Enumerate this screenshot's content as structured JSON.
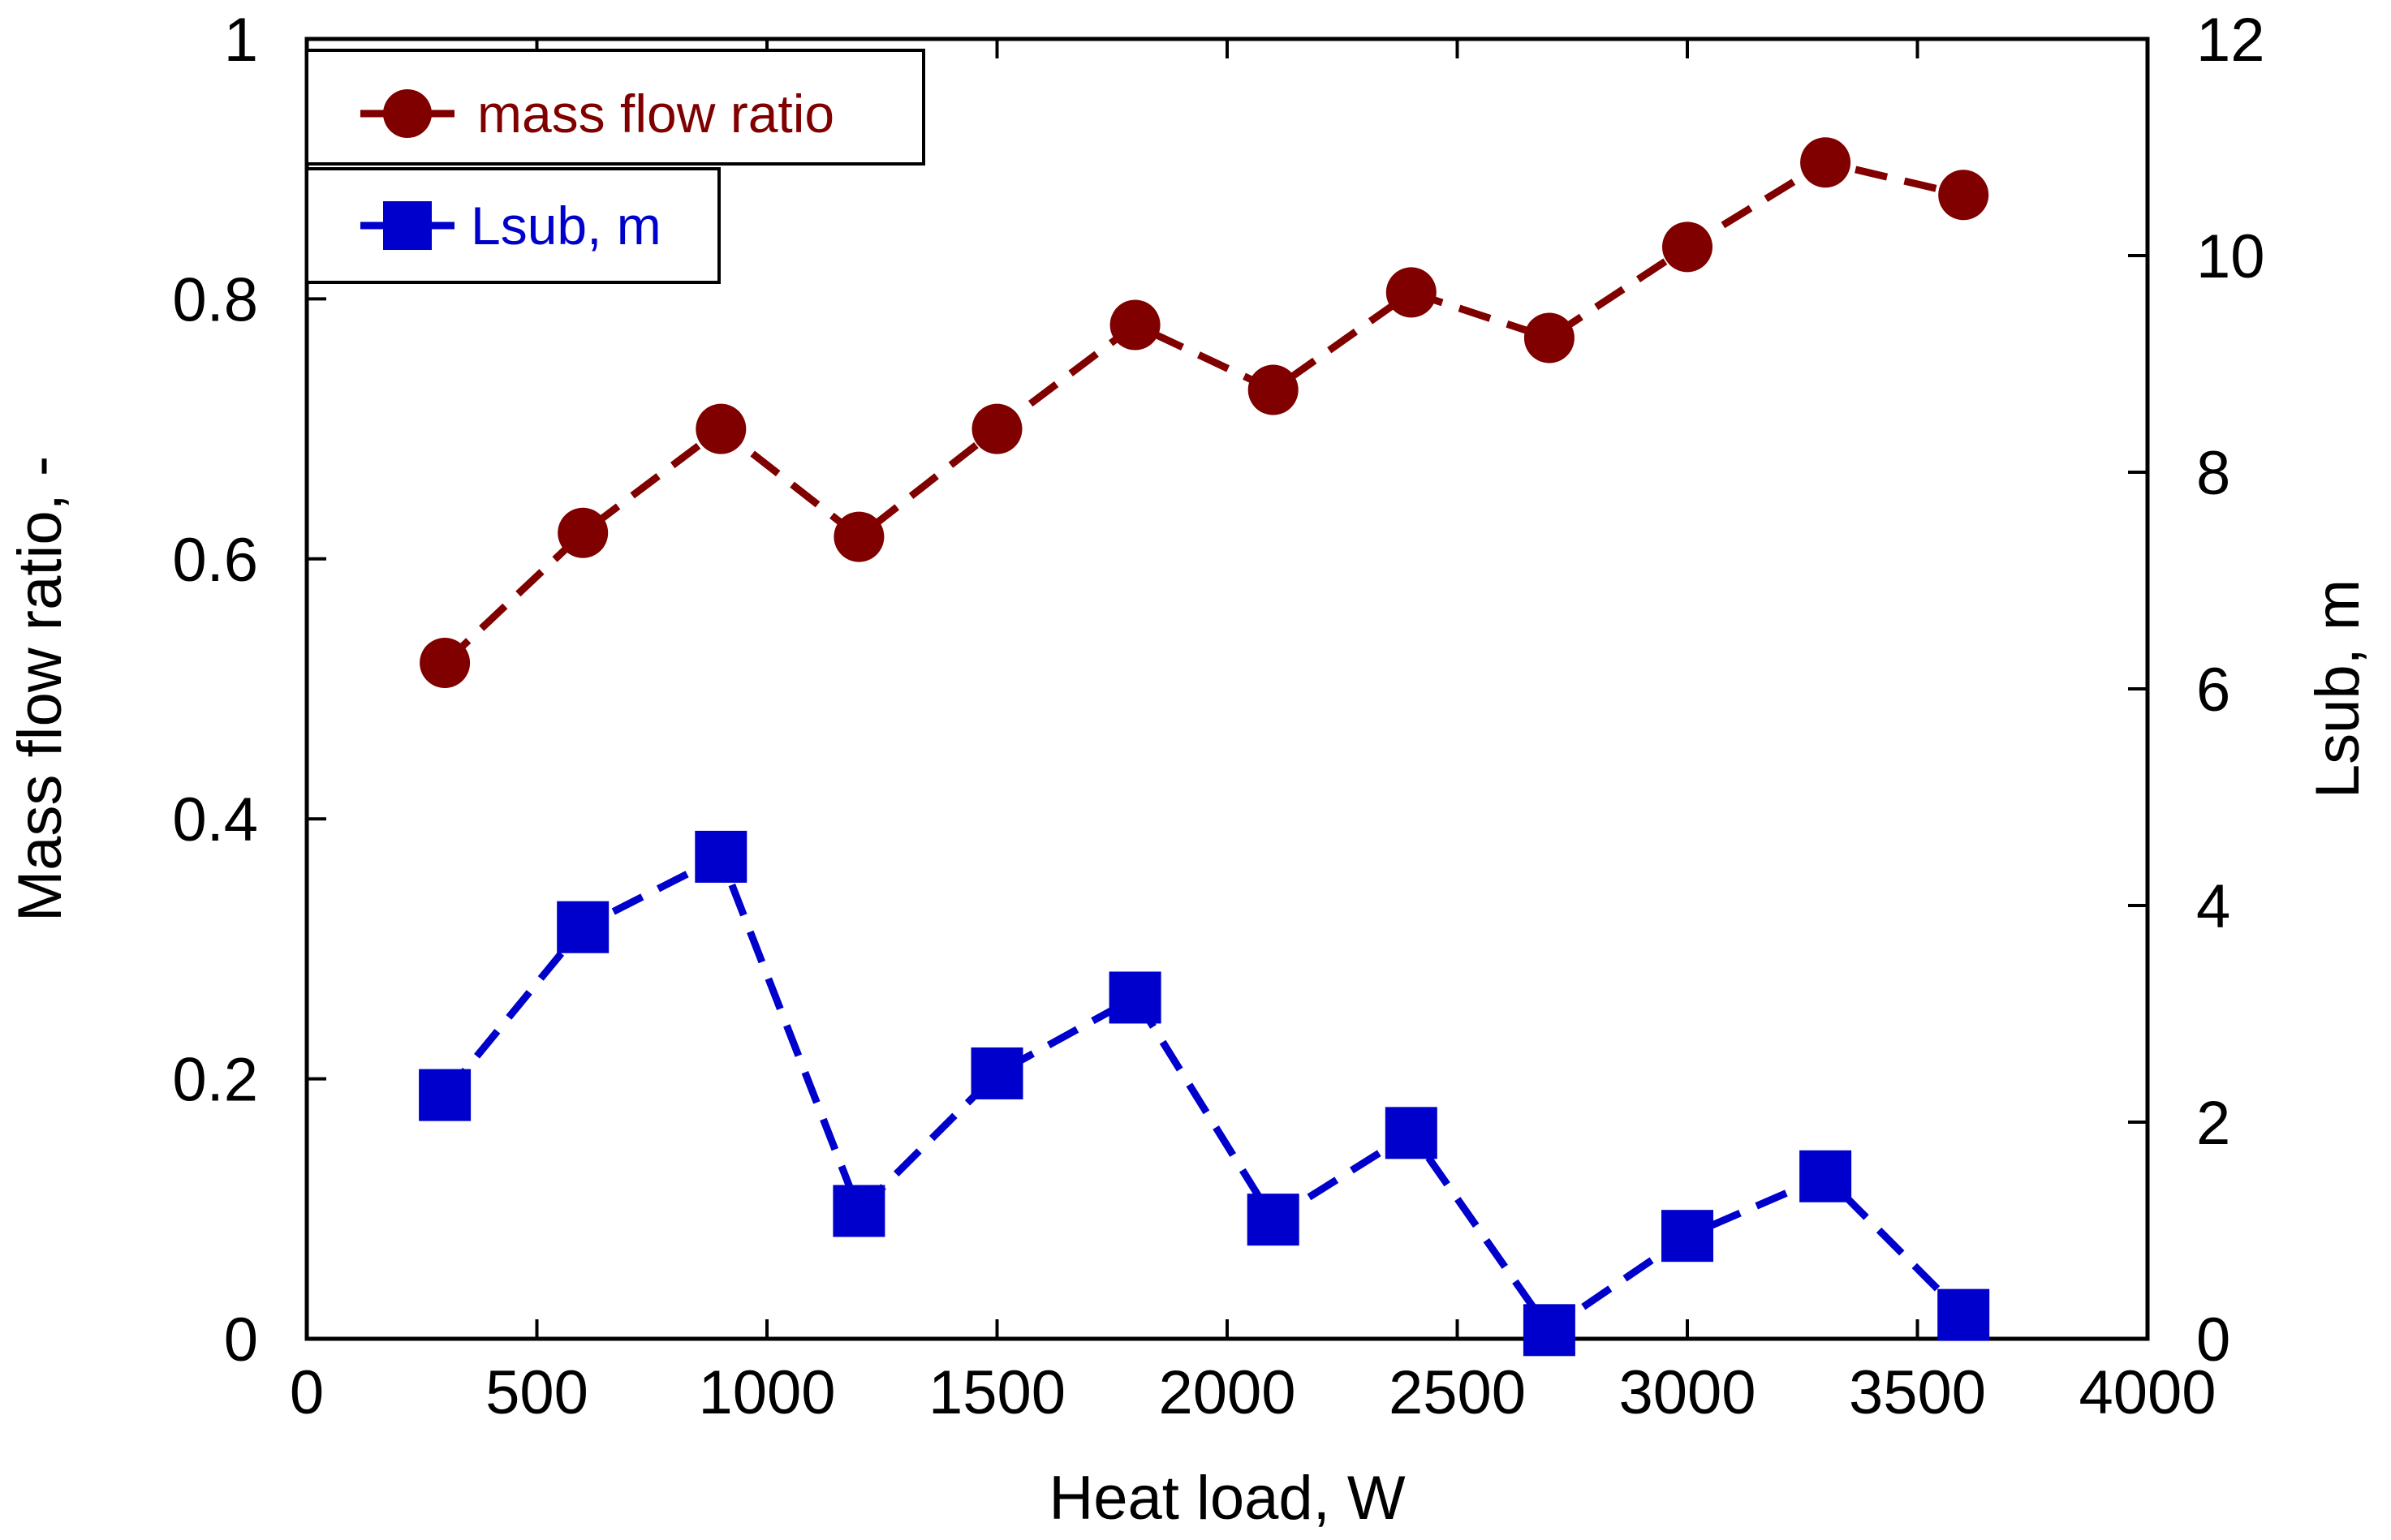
{
  "chart_data": {
    "type": "line",
    "xlabel": "Heat load, W",
    "ylabel": "Mass flow ratio, -",
    "y2label": "Lsub, m",
    "xlim": [
      0,
      4000
    ],
    "ylim": [
      0,
      1
    ],
    "y2lim": [
      0,
      12
    ],
    "x_ticks": [
      "0",
      "500",
      "1000",
      "1500",
      "2000",
      "2500",
      "3000",
      "3500",
      "4000"
    ],
    "y_ticks": [
      "0",
      "0.2",
      "0.4",
      "0.6",
      "0.8",
      "1"
    ],
    "y2_ticks": [
      "0",
      "2",
      "4",
      "6",
      "8",
      "10",
      "12"
    ],
    "grid": false,
    "legend_position": "top-left",
    "series": [
      {
        "name": "mass flow ratio",
        "axis": "left",
        "marker": "circle",
        "line": "dashed",
        "color": "#800000",
        "x": [
          300,
          600,
          900,
          1200,
          1500,
          1800,
          2100,
          2400,
          2700,
          3000,
          3300,
          3600
        ],
        "y": [
          0.52,
          0.62,
          0.7,
          0.617,
          0.7,
          0.78,
          0.73,
          0.805,
          0.77,
          0.84,
          0.905,
          0.88
        ]
      },
      {
        "name": "Lsub, m",
        "axis": "right",
        "marker": "square",
        "line": "dashed",
        "color": "#0000cc",
        "x": [
          300,
          600,
          900,
          1200,
          1500,
          1800,
          2100,
          2400,
          2700,
          3000,
          3300,
          3600
        ],
        "y": [
          2.25,
          3.8,
          4.45,
          1.18,
          2.45,
          3.15,
          1.1,
          1.9,
          0.08,
          0.95,
          1.5,
          0.22
        ]
      }
    ]
  }
}
